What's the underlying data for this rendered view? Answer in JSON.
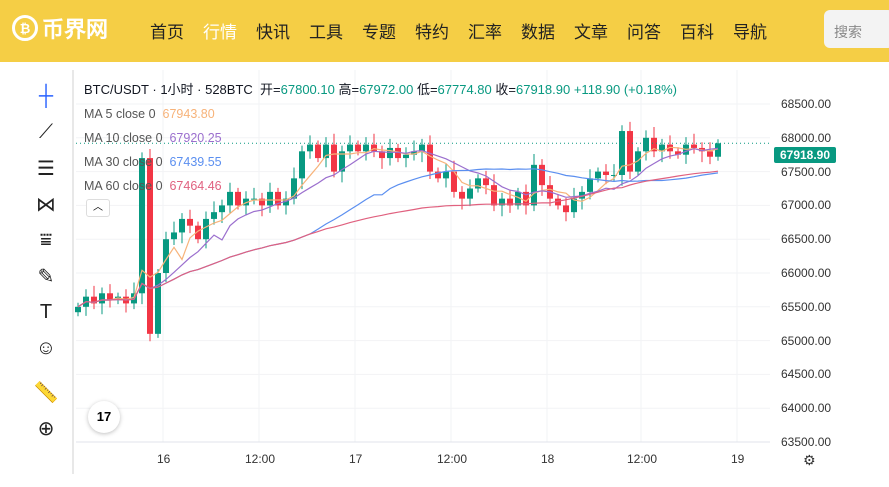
{
  "header": {
    "logo": "币界网",
    "nav": [
      "首页",
      "行情",
      "快讯",
      "工具",
      "专题",
      "特约",
      "汇率",
      "数据",
      "文章",
      "问答",
      "百科",
      "导航"
    ],
    "active": "行情",
    "search_placeholder": "搜索"
  },
  "legend": {
    "symbol": "BTC/USDT · 1小时 · 528BTC",
    "open_label": "开=",
    "open": "67800.10",
    "high_label": "高=",
    "high": "67972.00",
    "low_label": "低=",
    "low": "67774.80",
    "close_label": "收=",
    "close": "67918.90",
    "change": "+118.90 (+0.18%)"
  },
  "indicators": [
    {
      "label": "MA 5 close 0",
      "value": "67943.80",
      "color": "#f7b37a",
      "period": 5
    },
    {
      "label": "MA 10 close 0",
      "value": "67920.25",
      "color": "#9b6fce",
      "period": 10
    },
    {
      "label": "MA 30 close 0",
      "value": "67439.55",
      "color": "#5b8ff0",
      "period": 30
    },
    {
      "label": "MA 60 close 0",
      "value": "67464.46",
      "color": "#e0617f",
      "period": 60
    }
  ],
  "colors": {
    "up": "#089981",
    "down": "#f23645"
  },
  "chart_data": {
    "type": "candlestick",
    "last_price": "67918.90",
    "y_ticks": [
      68500,
      68000,
      67500,
      67000,
      66500,
      66000,
      65500,
      65000,
      64500,
      64000,
      63500
    ],
    "y_tick_labels": [
      "68500.00",
      "68000.00",
      "67500.00",
      "67000.00",
      "66500.00",
      "66000.00",
      "65500.00",
      "65000.00",
      "64500.00",
      "64000.00",
      "63500.00"
    ],
    "x_ticks": [
      "16",
      "12:00",
      "17",
      "12:00",
      "18",
      "12:00",
      "19"
    ],
    "ylim": [
      63400,
      68700
    ],
    "closes": [
      65500,
      65650,
      65550,
      65700,
      65600,
      65650,
      65550,
      65700,
      67700,
      65100,
      66000,
      66500,
      66600,
      66800,
      66700,
      66500,
      66800,
      66900,
      67000,
      67200,
      67000,
      67100,
      67100,
      67000,
      67200,
      67000,
      67100,
      67400,
      67800,
      67900,
      67700,
      67900,
      67500,
      67800,
      67900,
      67800,
      67900,
      67800,
      67700,
      67850,
      67700,
      67750,
      67800,
      67900,
      67500,
      67400,
      67500,
      67200,
      67100,
      67250,
      67400,
      67300,
      67000,
      67100,
      67000,
      67200,
      67000,
      67600,
      67300,
      67100,
      67000,
      66900,
      67100,
      67200,
      67400,
      67500,
      67450,
      67450,
      68100,
      67500,
      67800,
      68000,
      67800,
      67900,
      67800,
      67750,
      67900,
      67850,
      67800,
      67720,
      67918.9
    ]
  }
}
